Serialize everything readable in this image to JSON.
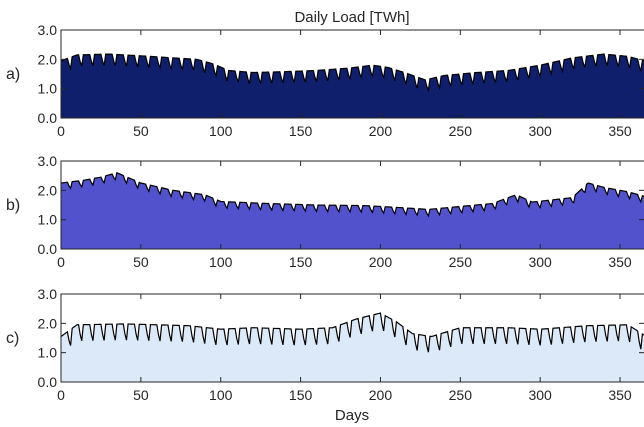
{
  "chart_data": {
    "type": "area",
    "title": "Daily Load [TWh]",
    "xlabel": "Days",
    "xlim": [
      0,
      365
    ],
    "xticks": [
      0,
      50,
      100,
      150,
      200,
      250,
      300,
      350
    ],
    "ylim": [
      0,
      3
    ],
    "yticks": [
      "0.0",
      "1.0",
      "2.0",
      "3.0"
    ],
    "grid": false,
    "panels": [
      {
        "label": "a)",
        "fill_color": "#0f1f6b",
        "weekly_dip": 0.38,
        "baseline": [
          [
            0,
            1.95
          ],
          [
            10,
            2.15
          ],
          [
            30,
            2.18
          ],
          [
            50,
            2.12
          ],
          [
            70,
            2.05
          ],
          [
            85,
            2.0
          ],
          [
            95,
            1.85
          ],
          [
            105,
            1.62
          ],
          [
            120,
            1.55
          ],
          [
            140,
            1.58
          ],
          [
            160,
            1.62
          ],
          [
            180,
            1.7
          ],
          [
            195,
            1.8
          ],
          [
            205,
            1.72
          ],
          [
            215,
            1.55
          ],
          [
            228,
            1.3
          ],
          [
            240,
            1.45
          ],
          [
            260,
            1.55
          ],
          [
            280,
            1.62
          ],
          [
            300,
            1.8
          ],
          [
            320,
            2.05
          ],
          [
            340,
            2.18
          ],
          [
            355,
            2.1
          ],
          [
            365,
            1.95
          ]
        ]
      },
      {
        "label": "b)",
        "fill_color": "#5252cc",
        "weekly_dip": 0.22,
        "baseline": [
          [
            0,
            2.25
          ],
          [
            15,
            2.35
          ],
          [
            25,
            2.45
          ],
          [
            35,
            2.6
          ],
          [
            50,
            2.25
          ],
          [
            70,
            2.0
          ],
          [
            90,
            1.85
          ],
          [
            100,
            1.62
          ],
          [
            130,
            1.55
          ],
          [
            160,
            1.5
          ],
          [
            190,
            1.48
          ],
          [
            210,
            1.42
          ],
          [
            230,
            1.35
          ],
          [
            250,
            1.45
          ],
          [
            270,
            1.55
          ],
          [
            285,
            1.85
          ],
          [
            295,
            1.6
          ],
          [
            320,
            1.75
          ],
          [
            330,
            2.25
          ],
          [
            340,
            2.1
          ],
          [
            355,
            1.95
          ],
          [
            365,
            1.8
          ]
        ]
      },
      {
        "label": "c)",
        "fill_color": "#dce9f8",
        "weekly_dip": 0.55,
        "baseline": [
          [
            0,
            1.55
          ],
          [
            10,
            1.95
          ],
          [
            40,
            1.98
          ],
          [
            80,
            1.92
          ],
          [
            100,
            1.8
          ],
          [
            120,
            1.85
          ],
          [
            150,
            1.8
          ],
          [
            170,
            1.85
          ],
          [
            185,
            2.15
          ],
          [
            200,
            2.35
          ],
          [
            210,
            2.05
          ],
          [
            220,
            1.65
          ],
          [
            232,
            1.55
          ],
          [
            250,
            1.85
          ],
          [
            280,
            1.85
          ],
          [
            300,
            1.8
          ],
          [
            330,
            1.92
          ],
          [
            355,
            1.95
          ],
          [
            365,
            1.6
          ]
        ]
      }
    ]
  }
}
